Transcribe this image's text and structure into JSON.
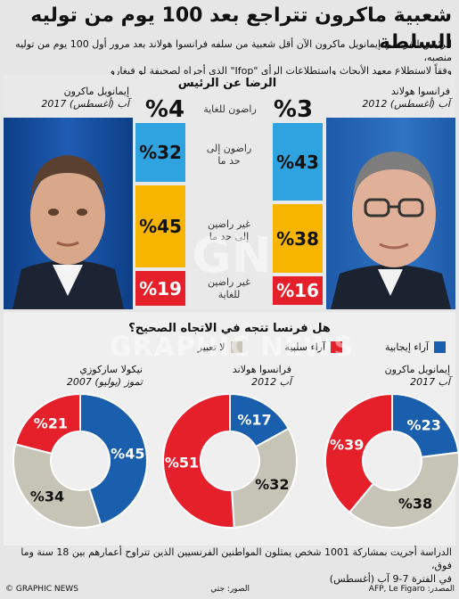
{
  "title": "شعبية ماكرون تتراجع بعد 100 يوم من توليه السلطة",
  "subtitle_line1": "الرئيس الفرنسي إيمانويل ماكرون الآن أقل شعبية من سلفه فرانسوا هولاند بعد مرور أول 100 يوم من توليه منصبه،",
  "subtitle_line2": "وفقاً لاستطلاع معهد الأبحاث واستطلاعات الرأي \"Ifop\" الذي أجراه لصحيفة لو فيغارو",
  "satisfaction": {
    "heading": "الرضا عن الرئيس",
    "label_very": "راضون للغاية",
    "label_fairly_1": "راضون إلى",
    "label_fairly_2": "حد ما",
    "label_somewhat_1": "غير راضين",
    "label_somewhat_2": "إلى حد ما",
    "label_not_1": "غير راضين",
    "label_not_2": "للغاية",
    "macron": {
      "name": "إيمانويل ماكرون",
      "date": "آب (أغسطس) 2017",
      "very": "%4",
      "values": [
        "%32",
        "%45",
        "%19"
      ]
    },
    "hollande": {
      "name": "فرانسوا هولاند",
      "date": "آب (أغسطس) 2012",
      "very": "%3",
      "values": [
        "%43",
        "%38",
        "%16"
      ]
    }
  },
  "direction": {
    "heading": "هل فرنسا تتجه في الاتجاه الصحيح؟",
    "legend": [
      "آراء إيجابية",
      "آراء سلبية",
      "لا تعبير"
    ],
    "donuts": [
      {
        "name": "إيمانويل ماكرون",
        "date": "آب 2017",
        "labels": [
          "%23",
          "%38",
          "%39"
        ]
      },
      {
        "name": "فرانسوا هولاند",
        "date": "آب 2012",
        "labels": [
          "%17",
          "%32",
          "%51"
        ]
      },
      {
        "name": "نيكولا ساركوزي",
        "date": "تموز (يوليو) 2007",
        "labels": [
          "%45",
          "%34",
          "%21"
        ]
      }
    ]
  },
  "footnote_line1": "الدراسة أجريت بمشاركة 1001 شخص يمثلون المواطنين الفرنسيين الذين تتراوح أعمارهم بين 18 سنة وما فوق،",
  "footnote_line2": "في الفترة 7-9 آب (أغسطس)",
  "footer": {
    "source": "المصدر: AFP, Le Figaro",
    "photos": "الصور: جتي",
    "brand": "© GRAPHIC NEWS"
  },
  "watermark": {
    "logo": "GN",
    "text": "GRAPHIC NEWS"
  },
  "colors": {
    "positive": "#1a5fad",
    "negative": "#e5202a",
    "neutral": "#c6c4b6",
    "very": "#1a5fad",
    "fairly": "#2fa3e0",
    "somewhat": "#f7b500",
    "not": "#e5202a"
  },
  "chart_data": [
    {
      "type": "bar",
      "title": "الرضا عن الرئيس",
      "categories": [
        "راضون للغاية",
        "راضون إلى حد ما",
        "غير راضين إلى حد ما",
        "غير راضين للغاية"
      ],
      "series": [
        {
          "name": "إيمانويل ماكرون",
          "values": [
            4,
            32,
            45,
            19
          ]
        },
        {
          "name": "فرانسوا هولاند",
          "values": [
            3,
            43,
            38,
            16
          ]
        }
      ]
    },
    {
      "type": "pie",
      "title": "هل فرنسا تتجه في الاتجاه الصحيح؟",
      "categories": [
        "آراء إيجابية",
        "لا تعبير",
        "آراء سلبية"
      ],
      "series": [
        {
          "name": "إيمانويل ماكرون",
          "values": [
            23,
            38,
            39
          ]
        },
        {
          "name": "فرانسوا هولاند",
          "values": [
            17,
            32,
            51
          ]
        },
        {
          "name": "نيكولا ساركوزي",
          "values": [
            45,
            34,
            21
          ]
        }
      ]
    }
  ]
}
